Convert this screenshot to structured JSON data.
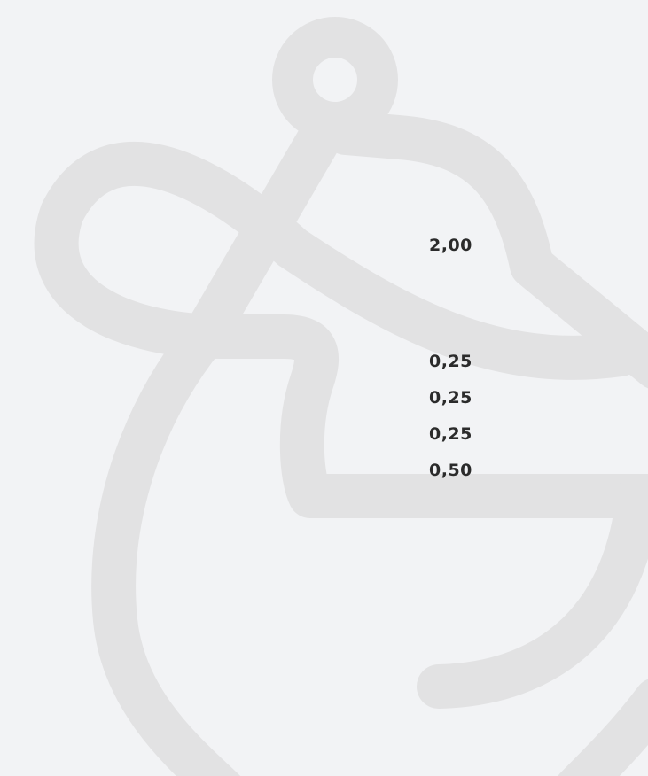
{
  "prices": [
    "2,00",
    "0,25",
    "0,25",
    "0,25",
    "0,50"
  ]
}
